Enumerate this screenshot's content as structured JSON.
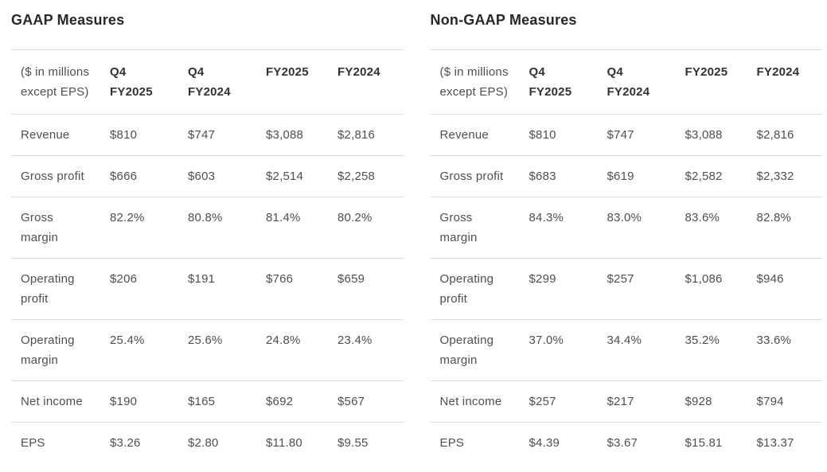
{
  "page": {
    "background": "#ffffff"
  },
  "colors": {
    "title_text": "#26282a",
    "header_text": "#303234",
    "body_text": "#4d4f51",
    "divider": "#dcdcdc"
  },
  "tables": [
    {
      "title": "GAAP Measures",
      "unit_label": "($ in millions\nexcept EPS)",
      "columns": [
        "Q4\nFY2025",
        "Q4\nFY2024",
        "FY2025",
        "FY2024"
      ],
      "rows": [
        {
          "label": "Revenue",
          "values": [
            "$810",
            "$747",
            "$3,088",
            "$2,816"
          ]
        },
        {
          "label": "Gross profit",
          "values": [
            "$666",
            "$603",
            "$2,514",
            "$2,258"
          ]
        },
        {
          "label": "Gross\nmargin",
          "values": [
            "82.2%",
            "80.8%",
            "81.4%",
            "80.2%"
          ]
        },
        {
          "label": "Operating\nprofit",
          "values": [
            "$206",
            "$191",
            "$766",
            "$659"
          ]
        },
        {
          "label": "Operating\nmargin",
          "values": [
            "25.4%",
            "25.6%",
            "24.8%",
            "23.4%"
          ]
        },
        {
          "label": "Net income",
          "values": [
            "$190",
            "$165",
            "$692",
            "$567"
          ]
        },
        {
          "label": "EPS",
          "values": [
            "$3.26",
            "$2.80",
            "$11.80",
            "$9.55"
          ]
        }
      ]
    },
    {
      "title": "Non-GAAP Measures",
      "unit_label": "($ in millions\nexcept EPS)",
      "columns": [
        "Q4\nFY2025",
        "Q4\nFY2024",
        "FY2025",
        "FY2024"
      ],
      "rows": [
        {
          "label": "Revenue",
          "values": [
            "$810",
            "$747",
            "$3,088",
            "$2,816"
          ]
        },
        {
          "label": "Gross profit",
          "values": [
            "$683",
            "$619",
            "$2,582",
            "$2,332"
          ]
        },
        {
          "label": "Gross\nmargin",
          "values": [
            "84.3%",
            "83.0%",
            "83.6%",
            "82.8%"
          ]
        },
        {
          "label": "Operating\nprofit",
          "values": [
            "$299",
            "$257",
            "$1,086",
            "$946"
          ]
        },
        {
          "label": "Operating\nmargin",
          "values": [
            "37.0%",
            "34.4%",
            "35.2%",
            "33.6%"
          ]
        },
        {
          "label": "Net income",
          "values": [
            "$257",
            "$217",
            "$928",
            "$794"
          ]
        },
        {
          "label": "EPS",
          "values": [
            "$4.39",
            "$3.67",
            "$15.81",
            "$13.37"
          ]
        }
      ]
    }
  ],
  "chart_data": [
    {
      "type": "table",
      "title": "GAAP Measures",
      "unit_note": "($ in millions except EPS)",
      "columns": [
        "Q4 FY2025",
        "Q4 FY2024",
        "FY2025",
        "FY2024"
      ],
      "rows": [
        [
          "Revenue",
          "$810",
          "$747",
          "$3,088",
          "$2,816"
        ],
        [
          "Gross profit",
          "$666",
          "$603",
          "$2,514",
          "$2,258"
        ],
        [
          "Gross margin",
          "82.2%",
          "80.8%",
          "81.4%",
          "80.2%"
        ],
        [
          "Operating profit",
          "$206",
          "$191",
          "$766",
          "$659"
        ],
        [
          "Operating margin",
          "25.4%",
          "25.6%",
          "24.8%",
          "23.4%"
        ],
        [
          "Net income",
          "$190",
          "$165",
          "$692",
          "$567"
        ],
        [
          "EPS",
          "$3.26",
          "$2.80",
          "$11.80",
          "$9.55"
        ]
      ]
    },
    {
      "type": "table",
      "title": "Non-GAAP Measures",
      "unit_note": "($ in millions except EPS)",
      "columns": [
        "Q4 FY2025",
        "Q4 FY2024",
        "FY2025",
        "FY2024"
      ],
      "rows": [
        [
          "Revenue",
          "$810",
          "$747",
          "$3,088",
          "$2,816"
        ],
        [
          "Gross profit",
          "$683",
          "$619",
          "$2,582",
          "$2,332"
        ],
        [
          "Gross margin",
          "84.3%",
          "83.0%",
          "83.6%",
          "82.8%"
        ],
        [
          "Operating profit",
          "$299",
          "$257",
          "$1,086",
          "$946"
        ],
        [
          "Operating margin",
          "37.0%",
          "34.4%",
          "35.2%",
          "33.6%"
        ],
        [
          "Net income",
          "$257",
          "$217",
          "$928",
          "$794"
        ],
        [
          "EPS",
          "$4.39",
          "$3.67",
          "$15.81",
          "$13.37"
        ]
      ]
    }
  ]
}
